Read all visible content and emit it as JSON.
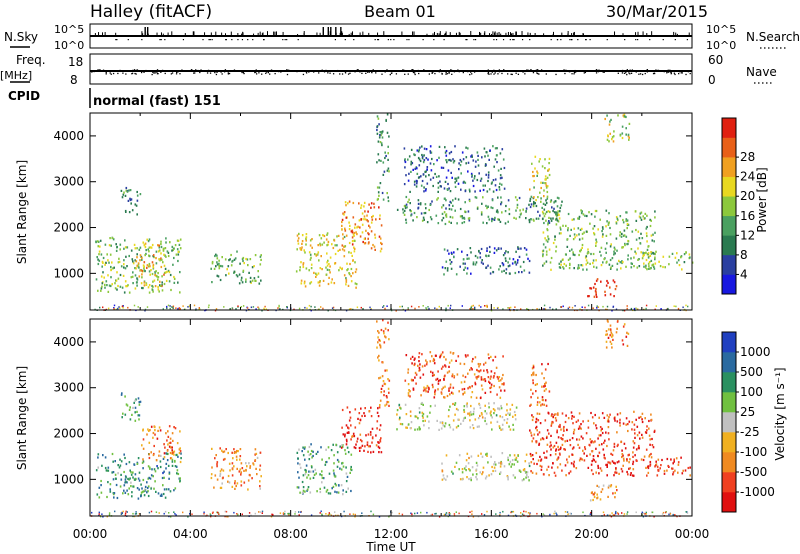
{
  "header": {
    "station": "Halley (fitACF)",
    "beam": "Beam 01",
    "date": "30/Mar/2015"
  },
  "left_labels": {
    "nsky": "N.Sky",
    "freq_top": "Freq.",
    "freq_unit": "[MHz]",
    "cpid": "CPID"
  },
  "right_labels": {
    "nsearch": "N.Search",
    "nave": "Nave"
  },
  "cpid_text": "normal (fast) 151",
  "colors": {
    "power": [
      "#1818e0",
      "#2a3fa0",
      "#2a7a50",
      "#4aa060",
      "#8cc83c",
      "#e8d820",
      "#f0a020",
      "#e86018",
      "#e02010"
    ],
    "velocity": [
      "#e01010",
      "#f04020",
      "#f08a20",
      "#f0b020",
      "#c0c0c0",
      "#70c040",
      "#2a9060",
      "#2a6aa0",
      "#2040c0"
    ],
    "frame": "#000000"
  },
  "chart_data": [
    {
      "type": "line",
      "title": "N.Sky / N.Search",
      "yticks_left": [
        "10^5",
        "10^0"
      ],
      "yticks_right": [
        "10^5",
        "10^0"
      ],
      "x": [
        "00:00",
        "02:00",
        "02:30",
        "04:00",
        "06:00",
        "08:00",
        "09:00",
        "09:30",
        "10:00",
        "12:00",
        "16:00",
        "20:00",
        "24:00"
      ],
      "series": [
        {
          "values": [
            1.5,
            1.5,
            3.0,
            1.5,
            1.5,
            1.5,
            2.5,
            2.8,
            3.0,
            1.5,
            1.5,
            1.5,
            1.5
          ]
        }
      ]
    },
    {
      "type": "line",
      "title": "Freq. / Nave",
      "yticks_left": [
        "18",
        "8"
      ],
      "yticks_right": [
        "60",
        "0"
      ],
      "ylim_left": [
        8,
        18
      ],
      "ylim_right": [
        0,
        60
      ],
      "x": [
        "00:00",
        "04:00",
        "08:00",
        "12:00",
        "16:00",
        "20:00",
        "24:00"
      ],
      "series": [
        {
          "values": [
            10,
            10,
            10,
            10,
            10,
            10,
            10
          ]
        }
      ]
    },
    {
      "type": "heatmap",
      "name": "power",
      "ylabel": "Slant Range [km]",
      "yticks": [
        "1000",
        "2000",
        "3000",
        "4000"
      ],
      "ylim": [
        200,
        4500
      ],
      "colorbar_label": "Power [dB]",
      "colorbar_ticks": [
        "4",
        "8",
        "12",
        "16",
        "20",
        "24",
        "28"
      ],
      "regions": [
        {
          "t0": 0.2,
          "t1": 3.6,
          "r0": 600,
          "r1": 1800,
          "level": 0.45
        },
        {
          "t0": 1.8,
          "t1": 3.0,
          "r0": 700,
          "r1": 1700,
          "level": 0.65
        },
        {
          "t0": 1.2,
          "t1": 2.0,
          "r0": 2300,
          "r1": 2900,
          "level": 0.3
        },
        {
          "t0": 4.8,
          "t1": 6.8,
          "r0": 800,
          "r1": 1500,
          "level": 0.4
        },
        {
          "t0": 8.2,
          "t1": 10.6,
          "r0": 700,
          "r1": 1900,
          "level": 0.6
        },
        {
          "t0": 10.0,
          "t1": 11.6,
          "r0": 1500,
          "r1": 2600,
          "level": 0.75
        },
        {
          "t0": 11.4,
          "t1": 11.9,
          "r0": 2600,
          "r1": 4500,
          "level": 0.35
        },
        {
          "t0": 12.2,
          "t1": 18.8,
          "r0": 2100,
          "r1": 2700,
          "level": 0.35
        },
        {
          "t0": 12.5,
          "t1": 16.5,
          "r0": 2800,
          "r1": 3800,
          "level": 0.25
        },
        {
          "t0": 14.0,
          "t1": 17.5,
          "r0": 1000,
          "r1": 1600,
          "level": 0.25
        },
        {
          "t0": 18.0,
          "t1": 22.5,
          "r0": 1100,
          "r1": 2400,
          "level": 0.45
        },
        {
          "t0": 17.5,
          "t1": 18.3,
          "r0": 2600,
          "r1": 3600,
          "level": 0.55
        },
        {
          "t0": 19.8,
          "t1": 21.0,
          "r0": 500,
          "r1": 900,
          "level": 0.95
        },
        {
          "t0": 20.5,
          "t1": 21.5,
          "r0": 3900,
          "r1": 4500,
          "level": 0.55
        },
        {
          "t0": 22.0,
          "t1": 24.0,
          "r0": 1100,
          "r1": 1500,
          "level": 0.5
        }
      ]
    },
    {
      "type": "heatmap",
      "name": "velocity",
      "ylabel": "Slant Range [km]",
      "yticks": [
        "1000",
        "2000",
        "3000",
        "4000"
      ],
      "ylim": [
        200,
        4500
      ],
      "xlabel": "Time UT",
      "xticks": [
        "00:00",
        "04:00",
        "08:00",
        "12:00",
        "16:00",
        "20:00",
        "00:00"
      ],
      "colorbar_label": "Velocity [m s⁻¹]",
      "colorbar_ticks": [
        "1000",
        "500",
        "100",
        "25",
        "-25",
        "-100",
        "-500",
        "-1000"
      ],
      "regions": [
        {
          "t0": 0.2,
          "t1": 3.6,
          "r0": 600,
          "r1": 1600,
          "level": 0.72
        },
        {
          "t0": 2.0,
          "t1": 3.6,
          "r0": 1400,
          "r1": 2200,
          "level": 0.25
        },
        {
          "t0": 1.2,
          "t1": 2.0,
          "r0": 2300,
          "r1": 2900,
          "level": 0.7
        },
        {
          "t0": 4.8,
          "t1": 6.8,
          "r0": 800,
          "r1": 1700,
          "level": 0.3
        },
        {
          "t0": 8.2,
          "t1": 10.4,
          "r0": 700,
          "r1": 1800,
          "level": 0.68
        },
        {
          "t0": 10.0,
          "t1": 11.6,
          "r0": 1600,
          "r1": 2600,
          "level": 0.08
        },
        {
          "t0": 11.4,
          "t1": 11.9,
          "r0": 2600,
          "r1": 4500,
          "level": 0.25
        },
        {
          "t0": 12.2,
          "t1": 17.0,
          "r0": 2100,
          "r1": 2700,
          "level": 0.5
        },
        {
          "t0": 12.5,
          "t1": 16.5,
          "r0": 2800,
          "r1": 3800,
          "level": 0.2
        },
        {
          "t0": 14.0,
          "t1": 17.5,
          "r0": 1000,
          "r1": 1600,
          "level": 0.5
        },
        {
          "t0": 17.5,
          "t1": 22.5,
          "r0": 1100,
          "r1": 2500,
          "level": 0.15
        },
        {
          "t0": 17.5,
          "t1": 18.3,
          "r0": 2600,
          "r1": 3600,
          "level": 0.2
        },
        {
          "t0": 19.8,
          "t1": 21.0,
          "r0": 500,
          "r1": 900,
          "level": 0.32
        },
        {
          "t0": 20.5,
          "t1": 21.5,
          "r0": 3900,
          "r1": 4500,
          "level": 0.25
        },
        {
          "t0": 22.0,
          "t1": 24.0,
          "r0": 1100,
          "r1": 1500,
          "level": 0.12
        }
      ]
    }
  ]
}
